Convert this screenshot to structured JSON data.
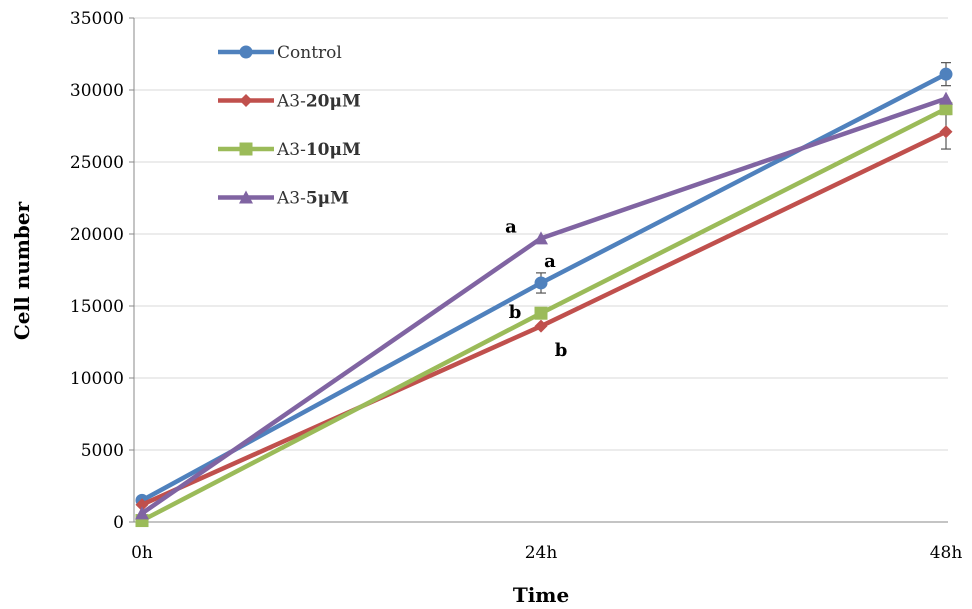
{
  "chart_data": {
    "type": "line",
    "categories": [
      "0h",
      "24h",
      "48h"
    ],
    "xlabel": "Time",
    "ylabel": "Cell number",
    "ylim": [
      0,
      35000
    ],
    "yticks": [
      0,
      5000,
      10000,
      15000,
      20000,
      25000,
      30000,
      35000
    ],
    "grid": "horizontal",
    "legend_position": "top-left",
    "series": [
      {
        "name": "Control",
        "name_parts": [
          "Control",
          ""
        ],
        "color": "#4F81BD",
        "marker": "circle",
        "values": [
          1500,
          16600,
          31100
        ],
        "error": [
          0,
          700,
          800
        ]
      },
      {
        "name": "A3-20μM",
        "name_parts": [
          "A3-",
          "20μM"
        ],
        "color": "#C0504D",
        "marker": "diamond",
        "values": [
          1200,
          13600,
          27100
        ],
        "error": [
          0,
          0,
          1200
        ]
      },
      {
        "name": "A3-10μM",
        "name_parts": [
          "A3-",
          "10μM"
        ],
        "color": "#9BBB59",
        "marker": "square",
        "values": [
          100,
          14500,
          28700
        ],
        "error": [
          0,
          0,
          0
        ]
      },
      {
        "name": "A3-5μM",
        "name_parts": [
          "A3-",
          "5μM"
        ],
        "color": "#8064A2",
        "marker": "triangle",
        "values": [
          600,
          19700,
          29400
        ],
        "error": [
          0,
          0,
          0
        ]
      }
    ],
    "annotations": [
      {
        "text": "a",
        "series": "A3-5μM",
        "category": "24h",
        "position": "upper-left"
      },
      {
        "text": "a",
        "series": "Control",
        "category": "24h",
        "position": "upper-right"
      },
      {
        "text": "b",
        "series": "A3-10μM",
        "category": "24h",
        "position": "left"
      },
      {
        "text": "b",
        "series": "A3-20μM",
        "category": "24h",
        "position": "lower-right"
      }
    ]
  }
}
